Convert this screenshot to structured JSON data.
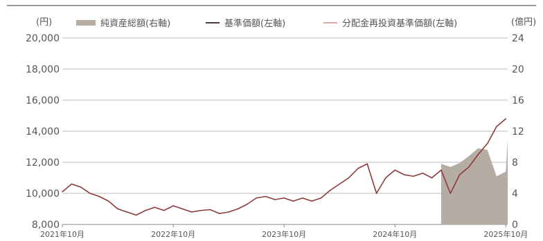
{
  "chart_data": {
    "type": "line",
    "legend": [
      {
        "label": "純資産総額(右軸)",
        "color": "#b5aca3",
        "kind": "area"
      },
      {
        "label": "基準価額(左軸)",
        "color": "#4a3a3a",
        "kind": "line"
      },
      {
        "label": "分配金再投資基準価額(左軸)",
        "color": "#d08a8a",
        "kind": "line"
      }
    ],
    "y_left": {
      "unit": "(円)",
      "min": 8000,
      "max": 20000,
      "ticks": [
        "8,000",
        "10,000",
        "12,000",
        "14,000",
        "16,000",
        "18,000",
        "20,000"
      ]
    },
    "y_right": {
      "unit": "(億円)",
      "min": 0,
      "max": 24,
      "ticks": [
        "0",
        "4",
        "8",
        "12",
        "16",
        "20",
        "24"
      ]
    },
    "x_axis": {
      "ticks": [
        "2021年10月",
        "2022年10月",
        "2023年10月",
        "2024年10月",
        "2025年10月"
      ]
    },
    "x_range": [
      "2021-10",
      "2025-10"
    ],
    "series": [
      {
        "name": "基準価額(左軸)",
        "color": "#8b3a3a",
        "points": [
          [
            "2021-10",
            10100
          ],
          [
            "2021-11",
            10600
          ],
          [
            "2021-12",
            10400
          ],
          [
            "2022-01",
            10000
          ],
          [
            "2022-02",
            9800
          ],
          [
            "2022-03",
            9500
          ],
          [
            "2022-04",
            9000
          ],
          [
            "2022-05",
            8800
          ],
          [
            "2022-06",
            8600
          ],
          [
            "2022-07",
            8900
          ],
          [
            "2022-08",
            9100
          ],
          [
            "2022-09",
            8900
          ],
          [
            "2022-10",
            9200
          ],
          [
            "2022-11",
            9000
          ],
          [
            "2022-12",
            8800
          ],
          [
            "2023-01",
            8900
          ],
          [
            "2023-02",
            8950
          ],
          [
            "2023-03",
            8700
          ],
          [
            "2023-04",
            8800
          ],
          [
            "2023-05",
            9000
          ],
          [
            "2023-06",
            9300
          ],
          [
            "2023-07",
            9700
          ],
          [
            "2023-08",
            9800
          ],
          [
            "2023-09",
            9600
          ],
          [
            "2023-10",
            9700
          ],
          [
            "2023-11",
            9500
          ],
          [
            "2023-12",
            9700
          ],
          [
            "2024-01",
            9500
          ],
          [
            "2024-02",
            9700
          ],
          [
            "2024-03",
            10200
          ],
          [
            "2024-04",
            10600
          ],
          [
            "2024-05",
            11000
          ],
          [
            "2024-06",
            11600
          ],
          [
            "2024-07",
            11900
          ],
          [
            "2024-08",
            10000
          ],
          [
            "2024-09",
            11000
          ],
          [
            "2024-10",
            11500
          ],
          [
            "2024-11",
            11200
          ],
          [
            "2024-12",
            11100
          ],
          [
            "2025-01",
            11300
          ],
          [
            "2025-02",
            11000
          ],
          [
            "2025-03",
            11500
          ],
          [
            "2025-04",
            10000
          ],
          [
            "2025-05",
            11200
          ],
          [
            "2025-06",
            11700
          ],
          [
            "2025-07",
            12500
          ],
          [
            "2025-08",
            13200
          ],
          [
            "2025-09",
            14300
          ],
          [
            "2025-10",
            14800
          ]
        ]
      }
    ],
    "net_assets": {
      "name": "純資産総額(右軸)",
      "color": "#b5aca3",
      "points": [
        [
          "2025-03",
          7.8
        ],
        [
          "2025-04",
          7.4
        ],
        [
          "2025-05",
          7.9
        ],
        [
          "2025-06",
          8.8
        ],
        [
          "2025-07",
          9.8
        ],
        [
          "2025-08",
          9.6
        ],
        [
          "2025-09",
          6.2
        ],
        [
          "2025-10",
          6.8
        ],
        [
          "2025-10-end",
          11.0
        ]
      ]
    }
  }
}
